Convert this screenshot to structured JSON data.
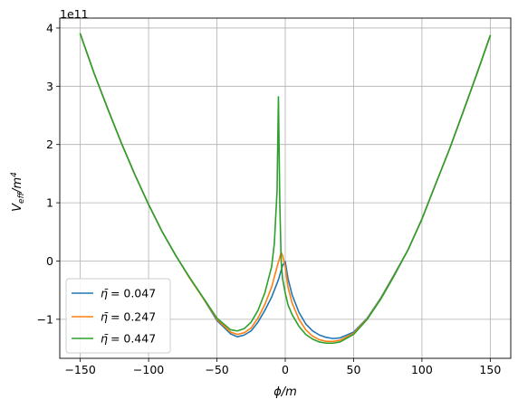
{
  "chart_data": {
    "type": "line",
    "title": "",
    "xlabel": "ϕ/m",
    "ylabel_main": "V",
    "ylabel_sub": "eff",
    "ylabel_rest": "/m",
    "ylabel_sup": "4",
    "offset_text": "1e11",
    "xlim": [
      -165,
      165
    ],
    "ylim": [
      -1.67,
      4.17
    ],
    "y_scale_note": "values in units of 1e11",
    "x_ticks": [
      -150,
      -100,
      -50,
      0,
      50,
      100,
      150
    ],
    "x_tick_labels": [
      "−150",
      "−100",
      "−50",
      "0",
      "50",
      "100",
      "150"
    ],
    "y_ticks": [
      -1,
      0,
      1,
      2,
      3,
      4
    ],
    "y_tick_labels": [
      "−1",
      "0",
      "1",
      "2",
      "3",
      "4"
    ],
    "grid": true,
    "legend_position": "lower-left",
    "series": [
      {
        "name": "η̄ = 0.047",
        "legend_symbol": "η̄",
        "legend_value": "= 0.047",
        "color": "#1f77b4",
        "x": [
          -150,
          -140,
          -130,
          -120,
          -110,
          -100,
          -90,
          -80,
          -70,
          -60,
          -50,
          -40,
          -35,
          -30,
          -25,
          -20,
          -15,
          -10,
          -5,
          -2,
          0,
          2,
          5,
          10,
          15,
          20,
          25,
          30,
          35,
          40,
          50,
          60,
          70,
          80,
          90,
          100,
          110,
          120,
          130,
          140,
          150
        ],
        "y": [
          3.9,
          3.23,
          2.62,
          2.03,
          1.48,
          0.97,
          0.5,
          0.09,
          -0.29,
          -0.64,
          -1.02,
          -1.25,
          -1.3,
          -1.27,
          -1.2,
          -1.05,
          -0.85,
          -0.62,
          -0.32,
          -0.08,
          -0.01,
          -0.3,
          -0.58,
          -0.88,
          -1.08,
          -1.2,
          -1.27,
          -1.31,
          -1.33,
          -1.32,
          -1.22,
          -0.98,
          -0.63,
          -0.22,
          0.2,
          0.72,
          1.32,
          1.91,
          2.55,
          3.2,
          3.87
        ]
      },
      {
        "name": "η̄ = 0.247",
        "legend_symbol": "η̄",
        "legend_value": "= 0.247",
        "color": "#ff7f0e",
        "x": [
          -150,
          -140,
          -130,
          -120,
          -110,
          -100,
          -90,
          -80,
          -70,
          -60,
          -50,
          -40,
          -35,
          -30,
          -25,
          -20,
          -15,
          -10,
          -6,
          -3,
          -2,
          0,
          2,
          5,
          10,
          15,
          20,
          25,
          30,
          35,
          40,
          50,
          60,
          70,
          80,
          90,
          100,
          110,
          120,
          130,
          140,
          150
        ],
        "y": [
          3.9,
          3.23,
          2.62,
          2.03,
          1.48,
          0.97,
          0.5,
          0.09,
          -0.29,
          -0.64,
          -1.0,
          -1.22,
          -1.26,
          -1.23,
          -1.15,
          -0.98,
          -0.75,
          -0.45,
          -0.1,
          0.15,
          0.1,
          -0.1,
          -0.45,
          -0.72,
          -1.0,
          -1.18,
          -1.29,
          -1.35,
          -1.38,
          -1.38,
          -1.36,
          -1.24,
          -0.99,
          -0.64,
          -0.23,
          0.2,
          0.72,
          1.32,
          1.91,
          2.55,
          3.2,
          3.87
        ]
      },
      {
        "name": "η̄ = 0.447",
        "legend_symbol": "η̄",
        "legend_value": "= 0.447",
        "color": "#2ca02c",
        "x": [
          -150,
          -140,
          -130,
          -120,
          -110,
          -100,
          -90,
          -80,
          -70,
          -60,
          -50,
          -40,
          -35,
          -30,
          -25,
          -20,
          -15,
          -10,
          -8,
          -6,
          -5,
          -4,
          -3,
          -2,
          0,
          2,
          5,
          10,
          15,
          20,
          25,
          30,
          35,
          40,
          50,
          60,
          70,
          80,
          90,
          100,
          110,
          120,
          130,
          140,
          150
        ],
        "y": [
          3.9,
          3.23,
          2.62,
          2.03,
          1.48,
          0.97,
          0.5,
          0.09,
          -0.28,
          -0.63,
          -0.98,
          -1.18,
          -1.2,
          -1.16,
          -1.05,
          -0.85,
          -0.55,
          -0.1,
          0.3,
          1.2,
          2.82,
          1.0,
          0.0,
          -0.3,
          -0.55,
          -0.75,
          -0.92,
          -1.12,
          -1.26,
          -1.34,
          -1.39,
          -1.41,
          -1.41,
          -1.39,
          -1.26,
          -1.0,
          -0.65,
          -0.24,
          0.2,
          0.72,
          1.32,
          1.91,
          2.55,
          3.2,
          3.87
        ]
      }
    ]
  }
}
